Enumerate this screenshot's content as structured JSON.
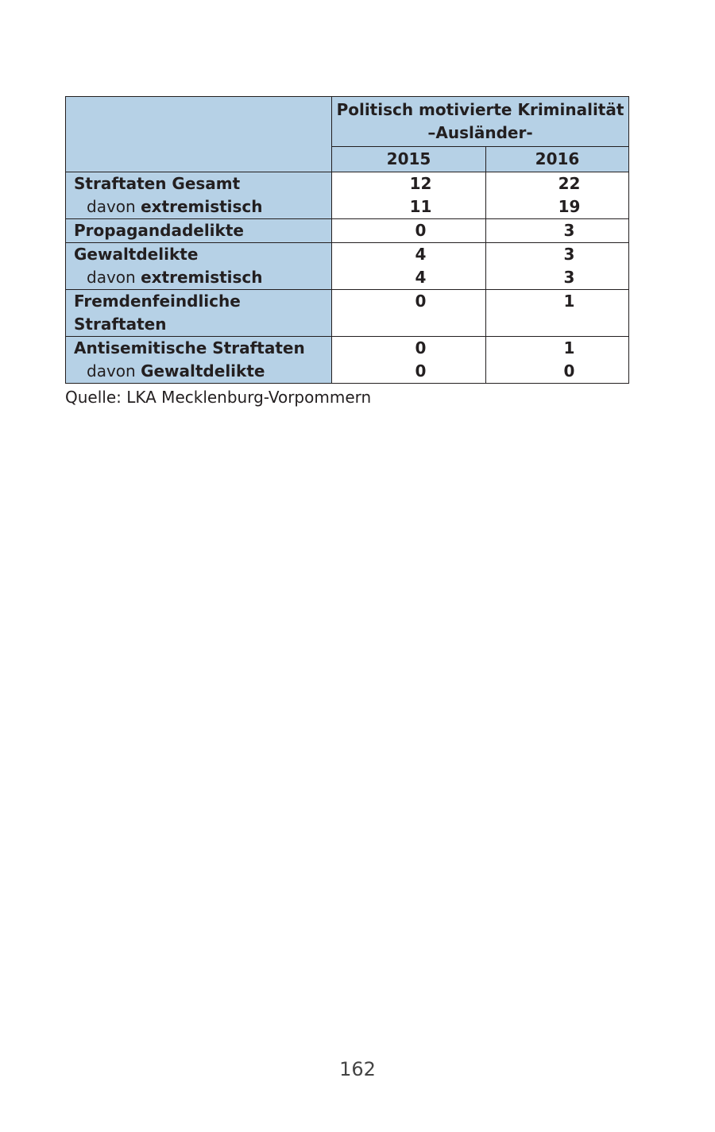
{
  "table": {
    "header": {
      "title_line1": "Politisch motivierte Kriminalität",
      "title_line2": "–Ausländer-",
      "years": [
        "2015",
        "2016"
      ]
    },
    "rows": [
      {
        "lines": [
          {
            "prefix": "",
            "label": "Straftaten Gesamt"
          },
          {
            "prefix": "davon ",
            "label": "extremistisch"
          }
        ],
        "v2015": [
          "12",
          "11"
        ],
        "v2016": [
          "22",
          "19"
        ]
      },
      {
        "lines": [
          {
            "prefix": "",
            "label": "Propagandadelikte"
          }
        ],
        "v2015": [
          "0"
        ],
        "v2016": [
          "3"
        ]
      },
      {
        "lines": [
          {
            "prefix": "",
            "label": "Gewaltdelikte"
          },
          {
            "prefix": "davon ",
            "label": "extremistisch"
          }
        ],
        "v2015": [
          "4",
          "4"
        ],
        "v2016": [
          "3",
          "3"
        ]
      },
      {
        "lines": [
          {
            "prefix": "",
            "label": "Fremdenfeindliche Straftaten"
          }
        ],
        "v2015": [
          "0"
        ],
        "v2016": [
          "1"
        ]
      },
      {
        "lines": [
          {
            "prefix": "",
            "label": "Antisemitische Straftaten"
          },
          {
            "prefix": "davon ",
            "label": "Gewaltdelikte"
          }
        ],
        "v2015": [
          "0",
          "0"
        ],
        "v2016": [
          "1",
          "0"
        ]
      }
    ]
  },
  "source": "Quelle: LKA Mecklenburg-Vorpommern",
  "page_number": "162",
  "colors": {
    "header_fill": "#b6d1e6",
    "border": "#231f20"
  }
}
